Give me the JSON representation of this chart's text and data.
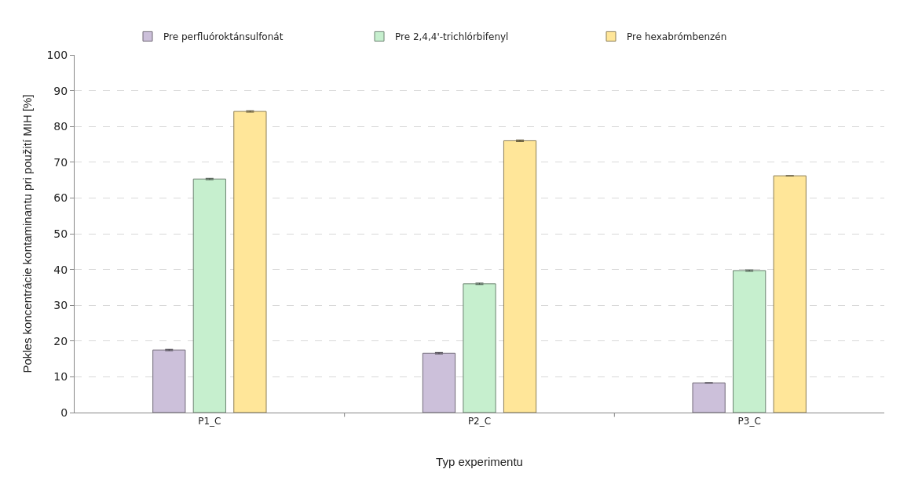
{
  "chart_data": {
    "type": "bar",
    "xlabel": "Typ experimentu",
    "ylabel": "Pokles koncentrácie kontaminantu pri použití MIH [%]",
    "categories": [
      "P1_C",
      "P2_C",
      "P3_C"
    ],
    "series": [
      {
        "name": "Pre perfluóroktánsulfonát",
        "color": "#ccc0da",
        "values": [
          17.5,
          16.6,
          8.3
        ],
        "errors": [
          0.2,
          0.2,
          null
        ]
      },
      {
        "name": "Pre 2,4,4'-trichlórbifenyl",
        "color": "#c6efce",
        "values": [
          65.3,
          36.0,
          39.7
        ],
        "errors": [
          0.2,
          0.2,
          0.2
        ]
      },
      {
        "name": "Pre hexabrómbenzén",
        "color": "#ffe699",
        "values": [
          84.2,
          76.0,
          66.2
        ],
        "errors": [
          0.2,
          0.2,
          null
        ]
      }
    ],
    "ylim": [
      0,
      100
    ],
    "yticks": [
      0,
      10,
      20,
      30,
      40,
      50,
      60,
      70,
      80,
      90,
      100
    ],
    "grid": "y",
    "legend": "top"
  }
}
